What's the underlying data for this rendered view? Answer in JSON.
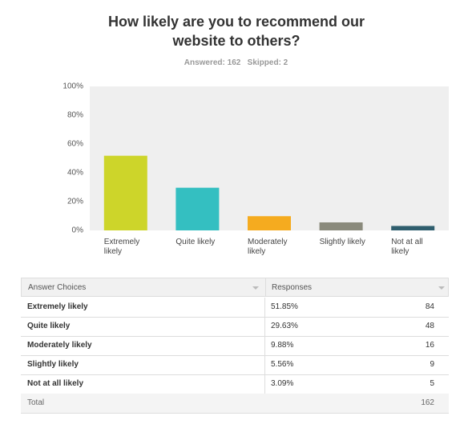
{
  "chart_data": {
    "type": "bar",
    "title": "How likely are you to recommend our website to others?",
    "answered": "Answered: 162",
    "skipped": "Skipped: 2",
    "categories": [
      "Extremely likely",
      "Quite likely",
      "Moderately likely",
      "Slightly likely",
      "Not at all likely"
    ],
    "values": [
      51.85,
      29.63,
      9.88,
      5.56,
      3.09
    ],
    "colors": [
      "#cdd52a",
      "#34bfc1",
      "#f5ab1f",
      "#8a8a7c",
      "#2f5e6e"
    ],
    "ylim": [
      0,
      100
    ],
    "yticks": [
      {
        "value": 0,
        "label": "0%"
      },
      {
        "value": 20,
        "label": "20%"
      },
      {
        "value": 40,
        "label": "40%"
      },
      {
        "value": 60,
        "label": "60%"
      },
      {
        "value": 80,
        "label": "80%"
      },
      {
        "value": 100,
        "label": "100%"
      }
    ],
    "grid": false
  },
  "table": {
    "header": [
      "Answer Choices",
      "Responses"
    ],
    "rows": [
      [
        "Extremely likely",
        "51.85%",
        84
      ],
      [
        "Quite likely",
        "29.63%",
        48
      ],
      [
        "Moderately likely",
        "9.88%",
        16
      ],
      [
        "Slightly likely",
        "5.56%",
        9
      ],
      [
        "Not at all likely",
        "3.09%",
        5
      ]
    ],
    "total": [
      "Total",
      162
    ]
  }
}
